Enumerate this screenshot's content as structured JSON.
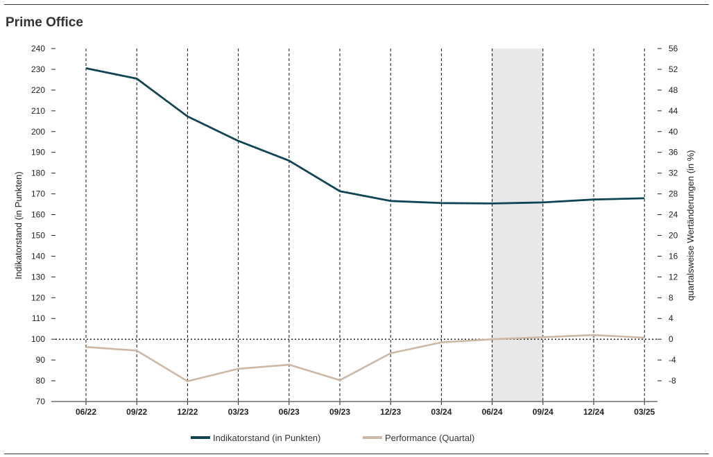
{
  "title": "Prime Office",
  "chart_data": {
    "type": "line",
    "categories": [
      "06/22",
      "09/22",
      "12/22",
      "03/23",
      "06/23",
      "09/23",
      "12/23",
      "03/24",
      "06/24",
      "09/24",
      "12/24",
      "03/25"
    ],
    "series": [
      {
        "name": "Indikatorstand (in Punkten)",
        "axis": "left",
        "color": "#0f4454",
        "values": [
          230.5,
          225.5,
          207.3,
          195.5,
          186.0,
          171.3,
          166.6,
          165.6,
          165.4,
          165.9,
          167.3,
          167.9
        ]
      },
      {
        "name": "Performance (Quartal)",
        "axis": "right",
        "color": "#cdb8a5",
        "values": [
          -1.5,
          -2.2,
          -8.1,
          -5.7,
          -4.9,
          -7.9,
          -2.7,
          -0.6,
          0.0,
          0.4,
          0.8,
          0.3
        ]
      }
    ],
    "ylabel": "Indikatorstand (in Punkten)",
    "ylabel_right": "quartalsweise Wertänderungen (in %)",
    "ylim": [
      70,
      240
    ],
    "yticks": [
      70,
      80,
      90,
      100,
      110,
      120,
      130,
      140,
      150,
      160,
      170,
      180,
      190,
      200,
      210,
      220,
      230,
      240
    ],
    "ylim_right": [
      -12,
      56
    ],
    "yticks_right": [
      -8,
      -4,
      0,
      4,
      8,
      12,
      16,
      20,
      24,
      28,
      32,
      36,
      40,
      44,
      48,
      52,
      56
    ],
    "reference_line": 100,
    "highlight_range": [
      "06/24",
      "09/24"
    ],
    "highlight_color": "#e8e8e8",
    "grid": "vertical dashed at categories",
    "legend": "bottom"
  }
}
